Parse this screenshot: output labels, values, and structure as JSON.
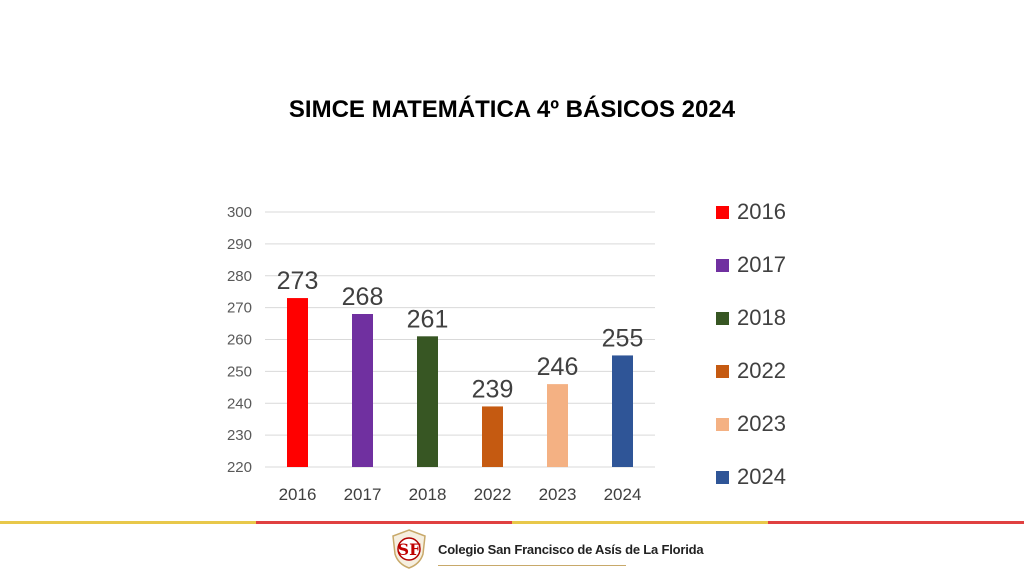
{
  "title": "SIMCE MATEMÁTICA 4º BÁSICOS 2024",
  "chart_data": {
    "type": "bar",
    "title": "SIMCE MATEMÁTICA 4º BÁSICOS 2024",
    "categories": [
      "2016",
      "2017",
      "2018",
      "2022",
      "2023",
      "2024"
    ],
    "values": [
      273,
      268,
      261,
      239,
      246,
      255
    ],
    "data_labels": [
      "273",
      "268",
      "261",
      "239",
      "246",
      "255"
    ],
    "colors": [
      "#ff0000",
      "#7030a0",
      "#375623",
      "#c55a11",
      "#f4b183",
      "#2f5597"
    ],
    "ylim": [
      220,
      300
    ],
    "yticks": [
      "220",
      "230",
      "240",
      "250",
      "260",
      "270",
      "280",
      "290",
      "300"
    ],
    "grid": true,
    "legend": {
      "placement": "right",
      "entries": [
        "2016",
        "2017",
        "2018",
        "2022",
        "2023",
        "2024"
      ]
    },
    "xlabel": "",
    "ylabel": ""
  },
  "footer": {
    "institution": "Colegio San Francisco de Asís de La Florida",
    "logo_letters": "SF",
    "line_colors": [
      "#e8c84a",
      "#e04040",
      "#e8c84a",
      "#e04040"
    ]
  }
}
